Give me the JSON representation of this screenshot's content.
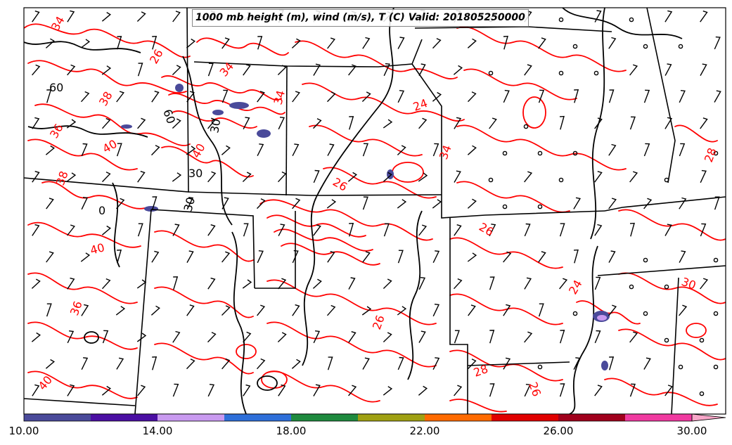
{
  "title": "1000 mb height (m), wind (m/s), T (C) Valid: 201805250000",
  "colorbar": {
    "ticks": [
      "10.00",
      "14.00",
      "18.00",
      "22.00",
      "26.00",
      "30.00"
    ],
    "colors": [
      "#4a4a9a",
      "#4b0fa3",
      "#c99af0",
      "#2e6fd9",
      "#1f8a3e",
      "#9fa012",
      "#ff6a00",
      "#e00000",
      "#a0001c",
      "#f03aa0",
      "#f7a6c8"
    ]
  },
  "colors": {
    "temperature_contour": "#ff0000",
    "height_contour": "#000000",
    "state_borders": "#000000",
    "wind_barbs": "#000000",
    "shading": "#4a4a9a"
  },
  "height_contour_labels": [
    "60",
    "60",
    "30",
    "0",
    "30",
    "30"
  ],
  "temperature_contour_labels": [
    "34",
    "26",
    "38",
    "34",
    "36",
    "40",
    "40",
    "38",
    "40",
    "36",
    "34",
    "24",
    "34",
    "26",
    "28",
    "26",
    "30",
    "24",
    "28",
    "26",
    "26",
    "40"
  ]
}
